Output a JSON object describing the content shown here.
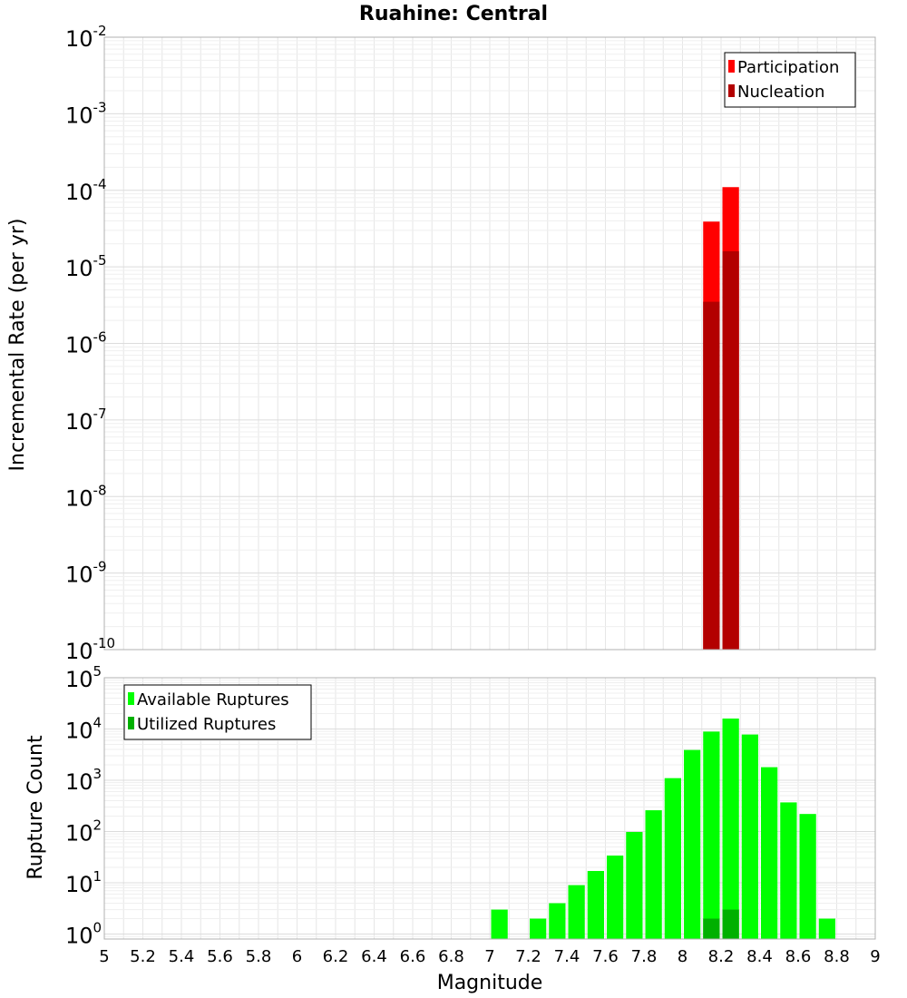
{
  "chart_data": {
    "title": "Ruahine: Central",
    "xlabel": "Magnitude",
    "xlim": [
      5,
      9
    ],
    "xticks": [
      "5",
      "5.2",
      "5.4",
      "5.6",
      "5.8",
      "6",
      "6.2",
      "6.4",
      "6.6",
      "6.8",
      "7",
      "7.2",
      "7.4",
      "7.6",
      "7.8",
      "8",
      "8.2",
      "8.4",
      "8.6",
      "8.8",
      "9"
    ],
    "bin_width": 0.1,
    "grid": true,
    "panels": [
      {
        "type": "bar",
        "ylabel": "Incremental Rate (per yr)",
        "yscale": "log",
        "ylim": [
          1e-10,
          0.01
        ],
        "ytick_exponents": [
          -2,
          -3,
          -4,
          -5,
          -6,
          -7,
          -8,
          -9,
          -10
        ],
        "legend_position": "top-right",
        "series": [
          {
            "name": "Participation",
            "color": "#ff0000",
            "x": [
              8.15,
              8.25
            ],
            "values": [
              3.9e-05,
              0.00011
            ]
          },
          {
            "name": "Nucleation",
            "color": "#b30000",
            "x": [
              8.15,
              8.25
            ],
            "values": [
              3.5e-06,
              1.6e-05
            ]
          }
        ]
      },
      {
        "type": "bar",
        "ylabel": "Rupture Count",
        "yscale": "log",
        "ylim": [
          0.8,
          100000
        ],
        "ytick_exponents": [
          0,
          1,
          2,
          3,
          4,
          5
        ],
        "legend_position": "top-left",
        "series": [
          {
            "name": "Available Ruptures",
            "color": "#00ff00",
            "x": [
              7.05,
              7.25,
              7.35,
              7.45,
              7.55,
              7.65,
              7.75,
              7.85,
              7.95,
              8.05,
              8.15,
              8.25,
              8.35,
              8.45,
              8.55,
              8.65,
              8.75
            ],
            "values": [
              3,
              2,
              4,
              9,
              17,
              34,
              98,
              260,
              1100,
              3900,
              8900,
              16000,
              7800,
              1800,
              370,
              220,
              2
            ]
          },
          {
            "name": "Utilized Ruptures",
            "color": "#00b000",
            "x": [
              8.15,
              8.25
            ],
            "values": [
              2,
              3
            ]
          }
        ]
      }
    ]
  }
}
